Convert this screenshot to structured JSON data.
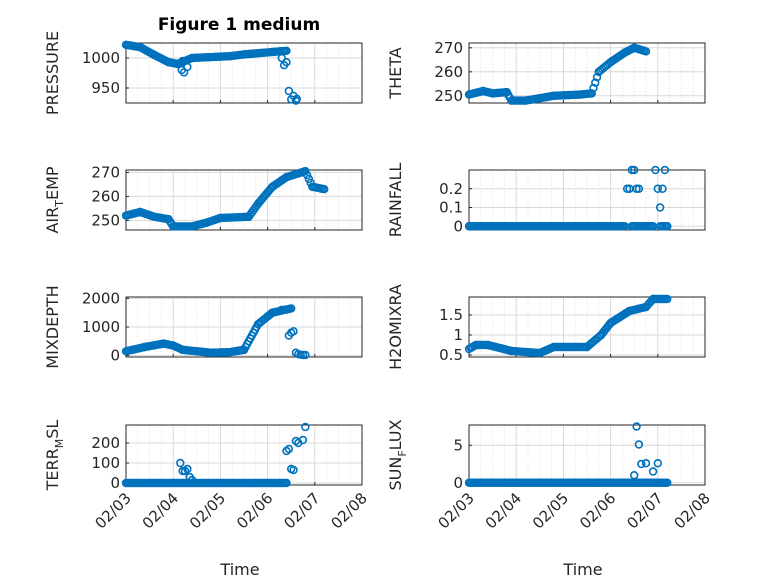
{
  "figure_title": "Figure 1 medium",
  "x_tick_labels": [
    "02/03",
    "02/04",
    "02/05",
    "02/06",
    "02/07",
    "02/08"
  ],
  "x_label": "Time",
  "colors": {
    "marker": "#0072BD",
    "grid": "#d9d9d9",
    "axis": "#262626"
  },
  "chart_data": [
    {
      "type": "scatter",
      "ylabel_main": "PRESSURE",
      "ylabel_sub": "",
      "ylabel_tail": "",
      "ylim": [
        925,
        1025
      ],
      "yticks": [
        950,
        1000
      ],
      "ytick_labels": [
        "950",
        "1000"
      ],
      "xlim": [
        0,
        5
      ],
      "segments": [
        [
          0.0,
          1022,
          0.3,
          1018
        ],
        [
          0.3,
          1018,
          0.6,
          1005
        ],
        [
          0.6,
          1005,
          0.9,
          993
        ],
        [
          0.9,
          993,
          1.1,
          990
        ],
        [
          1.1,
          990,
          1.4,
          1000
        ],
        [
          1.4,
          1000,
          2.2,
          1003
        ],
        [
          2.2,
          1003,
          2.5,
          1006
        ],
        [
          2.5,
          1006,
          3.4,
          1012
        ]
      ],
      "points": [
        [
          1.18,
          980
        ],
        [
          1.23,
          976
        ],
        [
          1.3,
          985
        ],
        [
          1.2,
          995
        ],
        [
          3.3,
          1000
        ],
        [
          3.35,
          988
        ],
        [
          3.4,
          993
        ],
        [
          3.45,
          945
        ],
        [
          3.5,
          931
        ],
        [
          3.55,
          937
        ],
        [
          3.6,
          929
        ],
        [
          3.62,
          932
        ]
      ]
    },
    {
      "type": "scatter",
      "ylabel_main": "THETA",
      "ylabel_sub": "",
      "ylabel_tail": "",
      "ylim": [
        247,
        272
      ],
      "yticks": [
        250,
        260,
        270
      ],
      "ytick_labels": [
        "250",
        "260",
        "270"
      ],
      "xlim": [
        0,
        5
      ],
      "segments": [
        [
          0.0,
          250.5,
          0.3,
          252
        ],
        [
          0.3,
          252,
          0.5,
          251
        ],
        [
          0.5,
          251,
          0.8,
          251.5
        ],
        [
          0.8,
          251.5,
          0.9,
          248
        ],
        [
          0.9,
          248,
          1.2,
          248
        ],
        [
          1.2,
          248,
          1.5,
          249
        ],
        [
          1.5,
          249,
          1.8,
          250
        ],
        [
          1.8,
          250,
          2.35,
          250.5
        ],
        [
          2.35,
          250.5,
          2.6,
          251
        ],
        [
          2.6,
          251,
          2.75,
          260
        ],
        [
          2.75,
          260,
          3.0,
          264
        ],
        [
          3.0,
          264,
          3.3,
          268
        ],
        [
          3.3,
          268,
          3.5,
          270
        ],
        [
          3.5,
          270,
          3.75,
          268.5
        ]
      ],
      "points": []
    },
    {
      "type": "scatter",
      "ylabel_main": "AIR",
      "ylabel_sub": "T",
      "ylabel_tail": "EMP",
      "ylim": [
        246,
        271
      ],
      "yticks": [
        250,
        260,
        270
      ],
      "ytick_labels": [
        "250",
        "260",
        "270"
      ],
      "xlim": [
        0,
        5
      ],
      "segments": [
        [
          0.0,
          252,
          0.3,
          253.5
        ],
        [
          0.3,
          253.5,
          0.6,
          251.5
        ],
        [
          0.6,
          251.5,
          0.9,
          250.5
        ],
        [
          0.9,
          250.5,
          1.0,
          247.5
        ],
        [
          1.0,
          247.5,
          1.4,
          247.5
        ],
        [
          1.4,
          247.5,
          1.7,
          249
        ],
        [
          1.7,
          249,
          2.0,
          251
        ],
        [
          2.0,
          251,
          2.6,
          251.5
        ],
        [
          2.6,
          251.5,
          2.8,
          257
        ],
        [
          2.8,
          257,
          3.1,
          264
        ],
        [
          3.1,
          264,
          3.4,
          268
        ],
        [
          3.4,
          268,
          3.8,
          270.5
        ],
        [
          3.8,
          270.5,
          3.95,
          264
        ],
        [
          3.95,
          264,
          4.2,
          263
        ]
      ],
      "points": []
    },
    {
      "type": "scatter",
      "ylabel_main": "RAINFALL",
      "ylabel_sub": "",
      "ylabel_tail": "",
      "ylim": [
        -0.02,
        0.3
      ],
      "yticks": [
        0,
        0.1,
        0.2
      ],
      "ytick_labels": [
        "0",
        "0.1",
        "0.2"
      ],
      "xlim": [
        0,
        5
      ],
      "segments": [
        [
          0.0,
          0,
          3.3,
          0
        ],
        [
          3.45,
          0,
          3.9,
          0
        ],
        [
          4.05,
          0,
          4.2,
          0
        ]
      ],
      "points": [
        [
          3.35,
          0.2
        ],
        [
          3.4,
          0.2
        ],
        [
          3.45,
          0.3
        ],
        [
          3.5,
          0.3
        ],
        [
          3.55,
          0.2
        ],
        [
          3.6,
          0.2
        ],
        [
          3.95,
          0.3
        ],
        [
          4.0,
          0.2
        ],
        [
          4.05,
          0.1
        ],
        [
          4.1,
          0.2
        ],
        [
          4.15,
          0.3
        ],
        [
          4.2,
          0
        ]
      ]
    },
    {
      "type": "scatter",
      "ylabel_main": "MIXDEPTH",
      "ylabel_sub": "",
      "ylabel_tail": "",
      "ylim": [
        -50,
        2050
      ],
      "yticks": [
        0,
        1000,
        2000
      ],
      "ytick_labels": [
        "0",
        "1000",
        "2000"
      ],
      "xlim": [
        0,
        5
      ],
      "segments": [
        [
          0.0,
          150,
          0.4,
          300
        ],
        [
          0.4,
          300,
          0.8,
          420
        ],
        [
          0.8,
          420,
          1.0,
          350
        ],
        [
          1.0,
          350,
          1.2,
          200
        ],
        [
          1.2,
          200,
          1.5,
          150
        ],
        [
          1.5,
          150,
          1.8,
          100
        ],
        [
          1.8,
          100,
          2.2,
          120
        ],
        [
          2.2,
          120,
          2.5,
          200
        ],
        [
          2.5,
          200,
          2.8,
          1100
        ],
        [
          2.8,
          1100,
          3.1,
          1500
        ],
        [
          3.1,
          1500,
          3.5,
          1650
        ]
      ],
      "points": [
        [
          3.3,
          1600
        ],
        [
          3.45,
          700
        ],
        [
          3.5,
          800
        ],
        [
          3.55,
          850
        ],
        [
          3.6,
          100
        ],
        [
          3.65,
          50
        ],
        [
          3.7,
          30
        ],
        [
          3.75,
          20
        ],
        [
          3.8,
          20
        ]
      ]
    },
    {
      "type": "scatter",
      "ylabel_main": "H2OMIXRA",
      "ylabel_sub": "",
      "ylabel_tail": "",
      "ylim": [
        0.45,
        1.95
      ],
      "yticks": [
        0.5,
        1,
        1.5
      ],
      "ytick_labels": [
        "0.5",
        "1",
        "1.5"
      ],
      "xlim": [
        0,
        5
      ],
      "segments": [
        [
          0.0,
          0.65,
          0.15,
          0.75
        ],
        [
          0.15,
          0.75,
          0.4,
          0.75
        ],
        [
          0.4,
          0.75,
          0.9,
          0.6
        ],
        [
          0.9,
          0.6,
          1.5,
          0.55
        ],
        [
          1.5,
          0.55,
          1.8,
          0.7
        ],
        [
          1.8,
          0.7,
          2.5,
          0.7
        ],
        [
          2.5,
          0.7,
          2.8,
          1.0
        ],
        [
          2.8,
          1.0,
          3.0,
          1.3
        ],
        [
          3.0,
          1.3,
          3.4,
          1.6
        ],
        [
          3.4,
          1.6,
          3.75,
          1.7
        ],
        [
          3.75,
          1.7,
          3.9,
          1.9
        ],
        [
          3.9,
          1.9,
          4.2,
          1.9
        ]
      ],
      "points": []
    },
    {
      "type": "scatter",
      "ylabel_main": "TERR",
      "ylabel_sub": "M",
      "ylabel_tail": "SL",
      "ylim": [
        -10,
        290
      ],
      "yticks": [
        0,
        100,
        200
      ],
      "ytick_labels": [
        "0",
        "100",
        "200"
      ],
      "xlim": [
        0,
        5
      ],
      "segments": [
        [
          0.0,
          0,
          3.4,
          0
        ]
      ],
      "points": [
        [
          1.15,
          100
        ],
        [
          1.2,
          60
        ],
        [
          1.25,
          60
        ],
        [
          1.3,
          70
        ],
        [
          1.35,
          30
        ],
        [
          1.4,
          15
        ],
        [
          3.4,
          160
        ],
        [
          3.45,
          170
        ],
        [
          3.5,
          70
        ],
        [
          3.55,
          65
        ],
        [
          3.6,
          210
        ],
        [
          3.65,
          200
        ],
        [
          3.75,
          215
        ],
        [
          3.8,
          280
        ]
      ]
    },
    {
      "type": "scatter",
      "ylabel_main": "SUN",
      "ylabel_sub": "F",
      "ylabel_tail": "LUX",
      "ylim": [
        -0.3,
        7.7
      ],
      "yticks": [
        0,
        5
      ],
      "ytick_labels": [
        "0",
        "5"
      ],
      "xlim": [
        0,
        5
      ],
      "segments": [
        [
          0.0,
          0,
          4.2,
          0
        ]
      ],
      "points": [
        [
          3.5,
          1.0
        ],
        [
          3.55,
          7.5
        ],
        [
          3.6,
          5.1
        ],
        [
          3.65,
          2.5
        ],
        [
          3.75,
          2.6
        ],
        [
          3.9,
          1.5
        ],
        [
          4.0,
          2.6
        ]
      ]
    }
  ]
}
